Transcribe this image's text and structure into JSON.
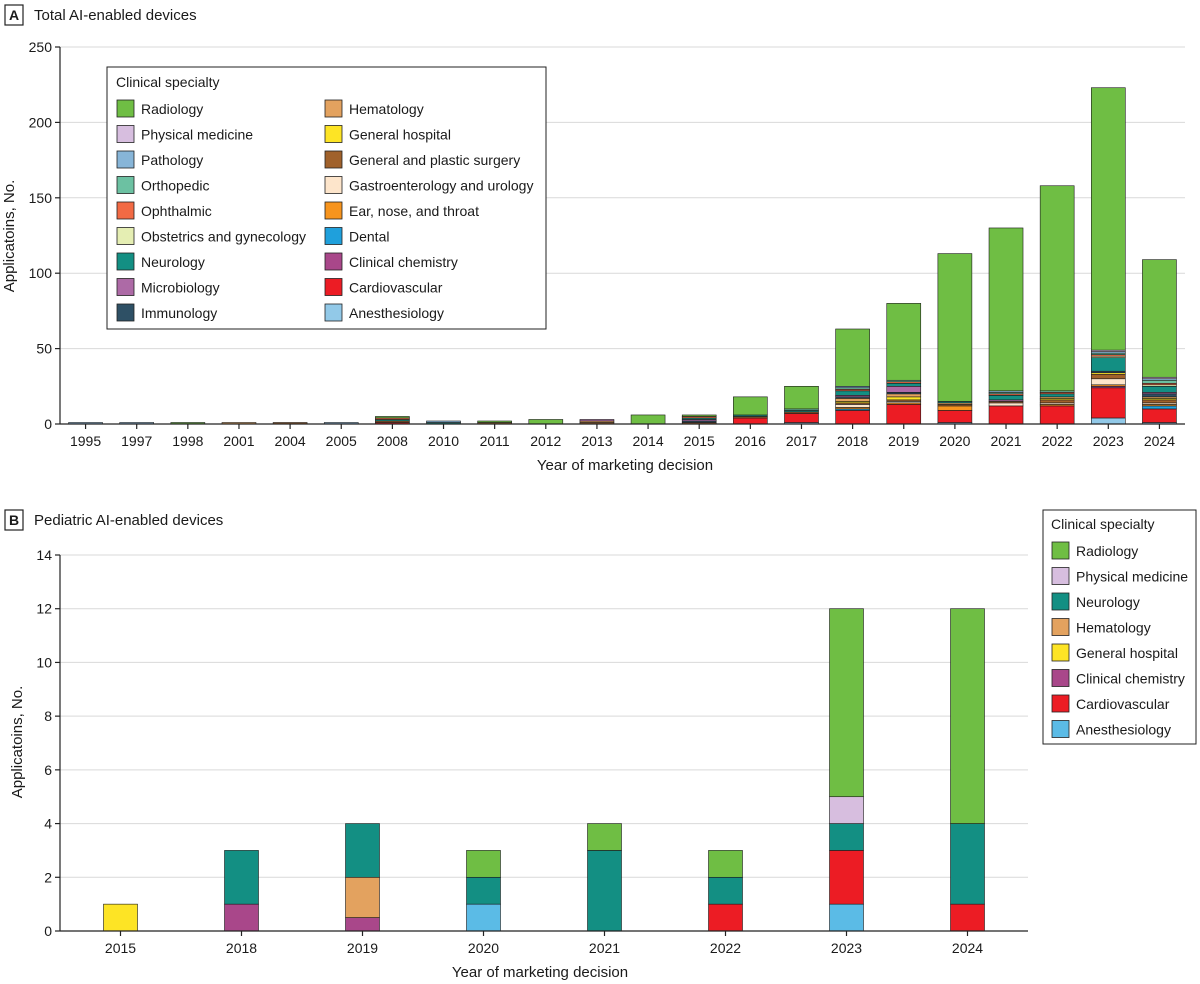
{
  "chart_data": [
    {
      "type": "bar",
      "stacked": true,
      "panel_label": "A",
      "title": "Total AI-enabled devices",
      "xlabel": "Year of marketing decision",
      "ylabel": "Applicatoins, No.",
      "ylim": [
        0,
        250
      ],
      "yticks": [
        "0",
        "50",
        "100",
        "150",
        "200",
        "250"
      ],
      "grid": true,
      "legend_title": "Clinical specialty",
      "legend_position": "top-left",
      "categories": [
        "1995",
        "1997",
        "1998",
        "2001",
        "2004",
        "2005",
        "2008",
        "2010",
        "2011",
        "2012",
        "2013",
        "2014",
        "2015",
        "2016",
        "2017",
        "2018",
        "2019",
        "2020",
        "2021",
        "2022",
        "2023",
        "2024"
      ],
      "series": [
        {
          "name": "Anesthesiology",
          "color": "#92c9e8",
          "values": [
            0,
            0,
            0,
            0,
            0,
            0,
            0,
            0,
            0,
            0,
            0,
            0,
            0,
            0,
            1,
            0,
            0,
            1,
            0,
            0,
            4,
            1
          ]
        },
        {
          "name": "Cardiovascular",
          "color": "#ec1c24",
          "values": [
            0,
            0,
            0,
            0,
            0,
            0,
            1,
            0,
            0,
            0,
            0,
            0,
            0,
            4,
            6,
            9,
            13,
            8,
            12,
            12,
            20,
            9
          ]
        },
        {
          "name": "Clinical chemistry",
          "color": "#a9478a",
          "values": [
            0,
            0,
            0,
            0,
            0,
            0,
            0,
            0,
            0,
            0,
            0,
            0,
            0,
            0,
            0,
            0,
            0,
            0,
            0,
            0,
            1,
            0
          ]
        },
        {
          "name": "Dental",
          "color": "#1fa0dc",
          "values": [
            0,
            0,
            0,
            0,
            0,
            0,
            0,
            0,
            0,
            0,
            0,
            0,
            0,
            0,
            0,
            1,
            0,
            0,
            0,
            0,
            0,
            2
          ]
        },
        {
          "name": "Ear, nose, and throat",
          "color": "#f7941d",
          "values": [
            0,
            0,
            0,
            0,
            0,
            0,
            0,
            0,
            0,
            0,
            0,
            0,
            0,
            0,
            0,
            1,
            1,
            3,
            0,
            1,
            1,
            1
          ]
        },
        {
          "name": "Gastroenterology and urology",
          "color": "#fde5cb",
          "values": [
            0,
            0,
            0,
            0,
            0,
            0,
            0,
            0,
            0,
            0,
            0,
            0,
            0,
            0,
            0,
            2,
            1,
            0,
            2,
            1,
            4,
            1
          ]
        },
        {
          "name": "General and plastic surgery",
          "color": "#a0612b",
          "values": [
            0,
            0,
            0,
            0,
            1,
            0,
            1,
            0,
            1,
            0,
            1,
            0,
            1,
            1,
            1,
            1,
            1,
            1,
            1,
            2,
            3,
            2
          ]
        },
        {
          "name": "General hospital",
          "color": "#fde425",
          "values": [
            0,
            0,
            0,
            0,
            0,
            0,
            0,
            0,
            0,
            0,
            0,
            0,
            0,
            0,
            0,
            1,
            2,
            0,
            0,
            1,
            1,
            1
          ]
        },
        {
          "name": "Hematology",
          "color": "#e3a25f",
          "values": [
            0,
            0,
            0,
            1,
            0,
            0,
            0,
            0,
            0,
            0,
            1,
            0,
            0,
            0,
            0,
            2,
            2,
            1,
            0,
            1,
            0,
            1
          ]
        },
        {
          "name": "Immunology",
          "color": "#2e5065",
          "values": [
            0,
            0,
            0,
            0,
            0,
            0,
            0,
            0,
            0,
            0,
            0,
            0,
            1,
            0,
            0,
            1,
            1,
            0,
            0,
            0,
            1,
            2
          ]
        },
        {
          "name": "Microbiology",
          "color": "#ad6aa6",
          "values": [
            0,
            0,
            0,
            0,
            0,
            0,
            0,
            0,
            0,
            0,
            1,
            0,
            1,
            0,
            0,
            1,
            4,
            0,
            1,
            0,
            0,
            1
          ]
        },
        {
          "name": "Neurology",
          "color": "#138f83",
          "values": [
            0,
            0,
            0,
            0,
            0,
            0,
            1,
            1,
            0,
            0,
            0,
            0,
            1,
            1,
            1,
            3,
            2,
            1,
            3,
            2,
            9,
            4
          ]
        },
        {
          "name": "Obstetrics and gynecology",
          "color": "#e5eeb3",
          "values": [
            0,
            0,
            0,
            0,
            0,
            0,
            0,
            0,
            0,
            0,
            0,
            0,
            0,
            0,
            0,
            0,
            0,
            0,
            0,
            0,
            1,
            1
          ]
        },
        {
          "name": "Ophthalmic",
          "color": "#f26a44",
          "values": [
            0,
            0,
            0,
            0,
            0,
            0,
            1,
            0,
            0,
            0,
            0,
            0,
            1,
            0,
            0,
            1,
            1,
            0,
            1,
            1,
            1,
            1
          ]
        },
        {
          "name": "Orthopedic",
          "color": "#6cc1a2",
          "values": [
            0,
            0,
            0,
            0,
            0,
            0,
            0,
            0,
            0,
            0,
            0,
            0,
            0,
            0,
            1,
            1,
            1,
            0,
            1,
            1,
            1,
            2
          ]
        },
        {
          "name": "Pathology",
          "color": "#87b5d8",
          "values": [
            1,
            1,
            0,
            0,
            0,
            1,
            0,
            1,
            0,
            0,
            0,
            0,
            0,
            0,
            0,
            1,
            0,
            0,
            1,
            0,
            1,
            1
          ]
        },
        {
          "name": "Physical medicine",
          "color": "#d7bedf",
          "values": [
            0,
            0,
            0,
            0,
            0,
            0,
            0,
            0,
            0,
            0,
            0,
            0,
            0,
            0,
            0,
            0,
            0,
            0,
            0,
            0,
            1,
            1
          ]
        },
        {
          "name": "Radiology",
          "color": "#6fbe44",
          "values": [
            0,
            0,
            1,
            0,
            0,
            0,
            1,
            0,
            1,
            3,
            0,
            6,
            1,
            12,
            15,
            38,
            51,
            98,
            108,
            136,
            174,
            78
          ]
        }
      ],
      "legend_left": [
        "Radiology",
        "Physical medicine",
        "Pathology",
        "Orthopedic",
        "Ophthalmic",
        "Obstetrics and gynecology",
        "Neurology",
        "Microbiology",
        "Immunology"
      ],
      "legend_right": [
        "Hematology",
        "General hospital",
        "General and plastic surgery",
        "Gastroenterology and urology",
        "Ear, nose, and throat",
        "Dental",
        "Clinical chemistry",
        "Cardiovascular",
        "Anesthesiology"
      ]
    },
    {
      "type": "bar",
      "stacked": true,
      "panel_label": "B",
      "title": "Pediatric AI-enabled devices",
      "xlabel": "Year of marketing decision",
      "ylabel": "Applicatoins, No.",
      "ylim": [
        0,
        14
      ],
      "yticks": [
        "0",
        "2",
        "4",
        "6",
        "8",
        "10",
        "12",
        "14"
      ],
      "grid": true,
      "legend_title": "Clinical specialty",
      "legend_position": "right",
      "categories": [
        "2015",
        "2018",
        "2019",
        "2020",
        "2021",
        "2022",
        "2023",
        "2024"
      ],
      "series": [
        {
          "name": "Anesthesiology",
          "color": "#5bbbe6",
          "values": [
            0,
            0,
            0,
            1,
            0,
            0,
            1,
            0
          ]
        },
        {
          "name": "Cardiovascular",
          "color": "#ec1c24",
          "values": [
            0,
            0,
            0,
            0,
            0,
            1,
            2,
            1
          ]
        },
        {
          "name": "Clinical chemistry",
          "color": "#a9478a",
          "values": [
            0,
            1,
            0.5,
            0,
            0,
            0,
            0,
            0
          ]
        },
        {
          "name": "General hospital",
          "color": "#fde425",
          "values": [
            1,
            0,
            0,
            0,
            0,
            0,
            0,
            0
          ]
        },
        {
          "name": "Hematology",
          "color": "#e3a25f",
          "values": [
            0,
            0,
            1.5,
            0,
            0,
            0,
            0,
            0
          ]
        },
        {
          "name": "Neurology",
          "color": "#138f83",
          "values": [
            0,
            2,
            2,
            1,
            3,
            1,
            1,
            3
          ]
        },
        {
          "name": "Physical medicine",
          "color": "#d7bedf",
          "values": [
            0,
            0,
            0,
            0,
            0,
            0,
            1,
            0
          ]
        },
        {
          "name": "Radiology",
          "color": "#6fbe44",
          "values": [
            0,
            0,
            0,
            1,
            1,
            1,
            7,
            8
          ]
        }
      ],
      "legend_order": [
        "Radiology",
        "Physical medicine",
        "Neurology",
        "Hematology",
        "General hospital",
        "Clinical chemistry",
        "Cardiovascular",
        "Anesthesiology"
      ]
    }
  ]
}
